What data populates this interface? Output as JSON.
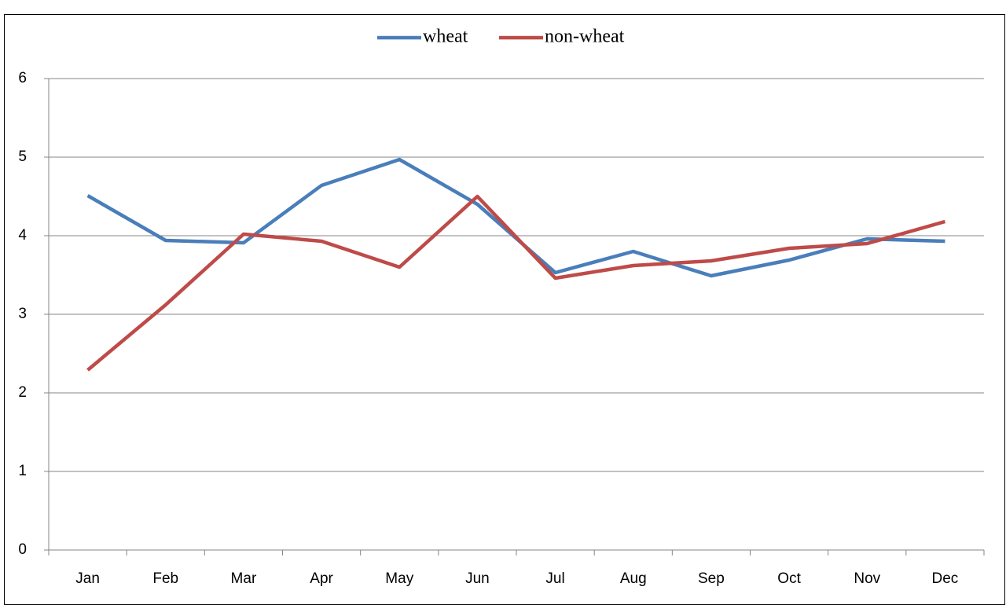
{
  "chart_data": {
    "type": "line",
    "categories": [
      "Jan",
      "Feb",
      "Mar",
      "Apr",
      "May",
      "Jun",
      "Jul",
      "Aug",
      "Sep",
      "Oct",
      "Nov",
      "Dec"
    ],
    "series": [
      {
        "name": "wheat",
        "color": "#4a7ebb",
        "values": [
          4.51,
          3.94,
          3.91,
          4.64,
          4.97,
          4.4,
          3.53,
          3.8,
          3.49,
          3.69,
          3.96,
          3.93
        ]
      },
      {
        "name": "non-wheat",
        "color": "#be4b48",
        "values": [
          2.29,
          3.12,
          4.02,
          3.93,
          3.6,
          4.5,
          3.46,
          3.62,
          3.68,
          3.84,
          3.9,
          4.18
        ]
      }
    ],
    "ylim": [
      0,
      6
    ],
    "yticks": [
      0,
      1,
      2,
      3,
      4,
      5,
      6
    ],
    "grid": true,
    "legend": "top"
  }
}
